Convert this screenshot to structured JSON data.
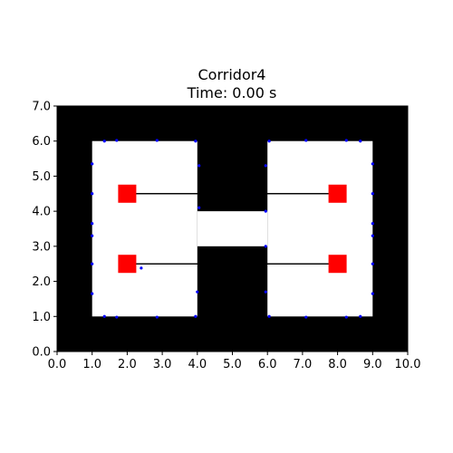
{
  "chart_data": {
    "type": "scatter",
    "title": "Corridor4",
    "subtitle": "Time: 0.00 s",
    "xlabel": "",
    "ylabel": "",
    "xlim": [
      0,
      10
    ],
    "ylim": [
      0,
      7
    ],
    "x_ticks": [
      "0.0",
      "1.0",
      "2.0",
      "3.0",
      "4.0",
      "5.0",
      "6.0",
      "7.0",
      "8.0",
      "9.0",
      "10.0"
    ],
    "y_ticks": [
      "0.0",
      "1.0",
      "2.0",
      "3.0",
      "4.0",
      "5.0",
      "6.0",
      "7.0"
    ],
    "grid": false,
    "colors": {
      "obstacle": "#000000",
      "free_space": "#ffffff",
      "robot": "#ff0000",
      "path": "#000000",
      "sensor_point": "#0000ff"
    },
    "free_regions": [
      {
        "x0": 1,
        "y0": 1,
        "x1": 4,
        "y1": 6
      },
      {
        "x0": 6,
        "y0": 1,
        "x1": 9,
        "y1": 6
      },
      {
        "x0": 4,
        "y0": 3,
        "x1": 6,
        "y1": 4
      }
    ],
    "robots": [
      {
        "x": 2,
        "y": 4.5,
        "goal_x": 8,
        "goal_y": 4.5
      },
      {
        "x": 2,
        "y": 2.5,
        "goal_x": 8,
        "goal_y": 2.5
      },
      {
        "x": 8,
        "y": 4.5,
        "goal_x": 2,
        "goal_y": 4.5
      },
      {
        "x": 8,
        "y": 2.5,
        "goal_x": 2,
        "goal_y": 2.5
      }
    ],
    "sensor_points": [
      [
        1.35,
        6.0
      ],
      [
        1.7,
        6.02
      ],
      [
        2.85,
        6.02
      ],
      [
        3.95,
        6.0
      ],
      [
        6.05,
        6.0
      ],
      [
        7.1,
        6.02
      ],
      [
        8.25,
        6.02
      ],
      [
        8.65,
        6.0
      ],
      [
        1.0,
        5.35
      ],
      [
        1.0,
        4.5
      ],
      [
        1.0,
        3.65
      ],
      [
        1.0,
        3.3
      ],
      [
        1.0,
        2.5
      ],
      [
        1.0,
        1.65
      ],
      [
        4.05,
        5.3
      ],
      [
        4.05,
        4.1
      ],
      [
        4.0,
        1.7
      ],
      [
        5.95,
        5.3
      ],
      [
        5.95,
        4.0
      ],
      [
        5.95,
        3.0
      ],
      [
        5.95,
        1.7
      ],
      [
        9.0,
        5.35
      ],
      [
        9.0,
        4.5
      ],
      [
        9.0,
        3.65
      ],
      [
        9.0,
        3.3
      ],
      [
        9.0,
        2.5
      ],
      [
        9.0,
        1.65
      ],
      [
        1.35,
        1.0
      ],
      [
        1.7,
        0.98
      ],
      [
        2.85,
        0.98
      ],
      [
        3.95,
        1.0
      ],
      [
        6.05,
        1.0
      ],
      [
        7.1,
        0.98
      ],
      [
        8.25,
        0.98
      ],
      [
        8.65,
        1.0
      ],
      [
        2.4,
        2.38
      ]
    ]
  }
}
